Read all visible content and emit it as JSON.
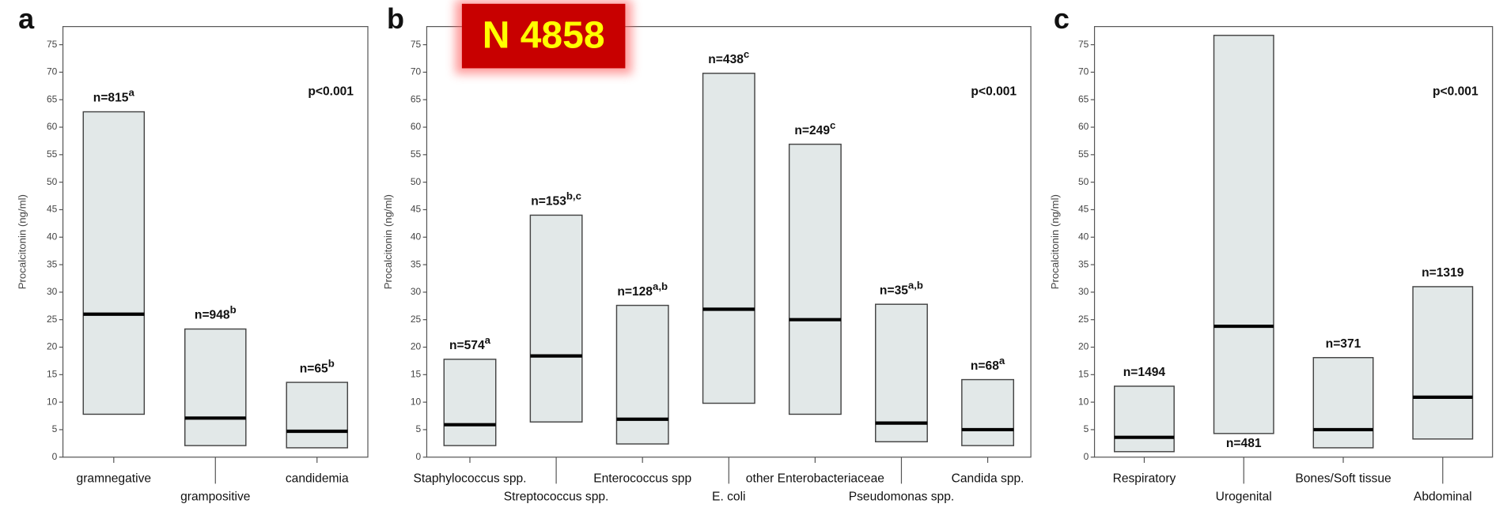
{
  "badge": "N 4858",
  "chart_data": [
    {
      "type": "box",
      "panel": "a",
      "y_label": "Procalcitonin (ng/ml)",
      "annotation": "p<0.001",
      "categories": [
        "gramnegative",
        "grampositive",
        "candidemia"
      ],
      "q1": [
        7.8,
        2.1,
        1.7
      ],
      "median": [
        26,
        7.1,
        4.7
      ],
      "q3": [
        62.8,
        23.3,
        13.6
      ],
      "n_labels": [
        "n=815",
        "n=948",
        "n=65"
      ],
      "n_superscripts": [
        "a",
        "b",
        "b"
      ],
      "color": "#e2e8e8",
      "ylim": [
        0,
        78.3
      ],
      "yticks": [
        0,
        5,
        10,
        15,
        20,
        25,
        30,
        35,
        40,
        45,
        50,
        55,
        60,
        65,
        70,
        75
      ]
    },
    {
      "type": "box",
      "panel": "b",
      "y_label": "Procalcitonin (ng/ml)",
      "annotation": "p<0.001",
      "categories": [
        "Staphylococcus spp.",
        "Streptococcus spp.",
        "Enterococcus spp",
        "E. coli",
        "other Enterobacteriaceae",
        "Pseudomonas spp.",
        "Candida spp."
      ],
      "q1": [
        2.1,
        6.4,
        2.4,
        9.8,
        7.8,
        2.8,
        2.1
      ],
      "median": [
        5.9,
        18.4,
        6.9,
        26.9,
        25,
        6.2,
        5
      ],
      "q3": [
        17.8,
        44,
        27.6,
        69.8,
        56.9,
        27.8,
        14.1
      ],
      "n_labels": [
        "n=574",
        "n=153",
        "n=128",
        "n=438",
        "n=249",
        "n=35",
        "n=68"
      ],
      "n_superscripts": [
        "a",
        "b,c",
        "a,b",
        "c",
        "c",
        "a,b",
        "a"
      ],
      "color": "#e2e8e8",
      "ylim": [
        0,
        78.3
      ],
      "yticks": [
        0,
        5,
        10,
        15,
        20,
        25,
        30,
        35,
        40,
        45,
        50,
        55,
        60,
        65,
        70,
        75
      ]
    },
    {
      "type": "box",
      "panel": "c",
      "y_label": "Procalcitonin (ng/ml)",
      "annotation": "p<0.001",
      "categories": [
        "Respiratory",
        "Urogenital",
        "Bones/Soft tissue",
        "Abdominal"
      ],
      "q1": [
        1,
        4.3,
        1.7,
        3.3
      ],
      "median": [
        3.6,
        23.8,
        5,
        10.9
      ],
      "q3": [
        12.9,
        76.7,
        18.1,
        31
      ],
      "n_labels": [
        "n=1494",
        "n=481",
        "n=371",
        "n=1319"
      ],
      "color": "#e2e8e8",
      "ylim": [
        0,
        78.3
      ],
      "yticks": [
        0,
        5,
        10,
        15,
        20,
        25,
        30,
        35,
        40,
        45,
        50,
        55,
        60,
        65,
        70,
        75
      ]
    }
  ]
}
